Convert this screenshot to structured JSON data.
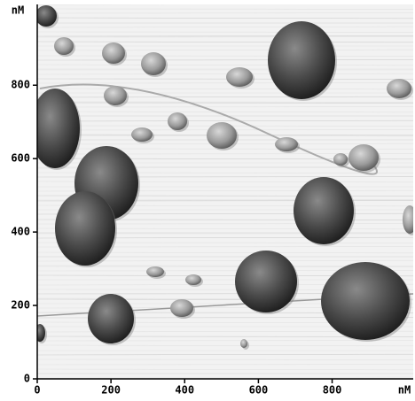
{
  "image": {
    "y_unit": "nM",
    "x_unit": "nM",
    "xlim": [
      0,
      1020
    ],
    "ylim": [
      0,
      1020
    ],
    "xticks": [
      0,
      200,
      400,
      600,
      800
    ],
    "yticks": [
      0,
      200,
      400,
      600,
      800
    ]
  }
}
